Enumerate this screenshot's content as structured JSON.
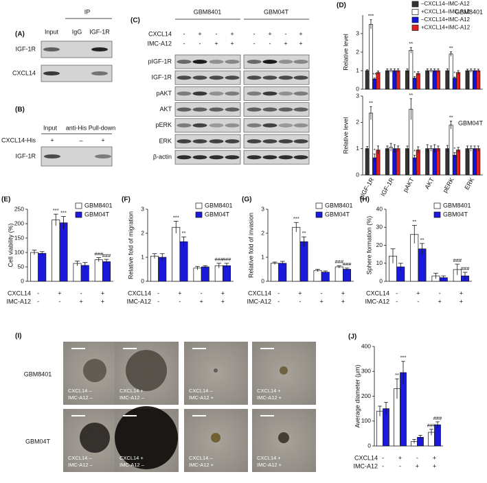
{
  "figure": {
    "A": {
      "label": "(A)",
      "ip": "IP",
      "columns": [
        "Input",
        "IgG",
        "IGF-1R"
      ],
      "rows": [
        "IGF-1R",
        "CXCL14"
      ]
    },
    "B": {
      "label": "(B)",
      "columns": [
        "Input",
        "anti-His Pull-down"
      ],
      "treatment": "CXCL14-His",
      "signs": [
        "+",
        "–",
        "+"
      ],
      "rows": [
        "IGF-1R"
      ]
    },
    "C": {
      "label": "(C)",
      "groups": [
        "GBM8401",
        "GBM04T"
      ],
      "treatments": [
        {
          "name": "CXCL14",
          "signs": [
            "-",
            "+",
            "-",
            "+"
          ]
        },
        {
          "name": "IMC-A12",
          "signs": [
            "-",
            "-",
            "+",
            "+"
          ]
        }
      ],
      "rows": [
        "pIGF-1R",
        "IGF-1R",
        "pAKT",
        "AKT",
        "pERK",
        "ERK",
        "β-actin"
      ]
    },
    "I": {
      "label": "(I)",
      "rows": [
        {
          "label": "GBM8401",
          "captions": [
            [
              "CXCL14 –",
              "IMC-A12 –"
            ],
            [
              "CXCL14 +",
              "IMC-A12 –"
            ],
            [
              "CXCL14 –",
              "IMC-A12 +"
            ],
            [
              "CXCL14 +",
              "IMC-A12 +"
            ]
          ]
        },
        {
          "label": "GBM04T",
          "captions": [
            [
              "CXCL14 –",
              "IMC-A12 –"
            ],
            [
              "CXCL14 +",
              "IMC-A12 –"
            ],
            [
              "CXCL14 –",
              "IMC-A12 +"
            ],
            [
              "CXCL14 +",
              "IMC-A12 +"
            ]
          ]
        }
      ]
    }
  },
  "chart_data": [
    {
      "type": "bar",
      "panel_label": "(D)",
      "title": "GBM8401",
      "y_label": "Relative level",
      "categories": [
        null,
        null,
        null,
        null,
        null,
        null
      ],
      "ylim": [
        0,
        4
      ],
      "yticks": [
        0,
        1,
        2,
        3
      ],
      "legend": "top-right",
      "series": [
        {
          "name": "–CXCL14–IMC-A12",
          "color": "#333333",
          "values": [
            1,
            1,
            1,
            1,
            1,
            1
          ],
          "errors": [
            0.05,
            0.1,
            0.1,
            0.1,
            0.1,
            0.08
          ],
          "labels": [
            null,
            null,
            null,
            null,
            null,
            null
          ]
        },
        {
          "name": "+CXCL14–IMC-A12",
          "color": "#ffffff",
          "values": [
            3.5,
            1.0,
            2.1,
            1.0,
            1.9,
            1.0
          ],
          "errors": [
            0.25,
            0.1,
            0.15,
            0.1,
            0.12,
            0.1
          ],
          "labels": [
            "***",
            null,
            "**",
            null,
            "**",
            null
          ]
        },
        {
          "name": "–CXCL14+IMC-A12",
          "color": "#1414dc",
          "values": [
            0.55,
            1.0,
            0.6,
            1.0,
            0.6,
            1.0
          ],
          "errors": [
            0.05,
            0.1,
            0.08,
            0.1,
            0.06,
            0.1
          ],
          "labels": [
            "**",
            null,
            "*",
            null,
            "*",
            null
          ]
        },
        {
          "name": "+CXCL14+IMC-A12",
          "color": "#e02020",
          "values": [
            0.9,
            1.0,
            0.85,
            1.0,
            0.9,
            1.0
          ],
          "errors": [
            0.08,
            0.1,
            0.1,
            0.1,
            0.1,
            0.08
          ],
          "labels": [
            null,
            null,
            null,
            null,
            null,
            null
          ]
        }
      ]
    },
    {
      "type": "bar",
      "title": "GBM04T",
      "y_label": "Relative level",
      "categories": [
        "pIGF-1R",
        "IGF-1R",
        "pAKT",
        "AKT",
        "pERK",
        "ERK"
      ],
      "ylim": [
        0,
        3
      ],
      "yticks": [
        0,
        1,
        2,
        3
      ],
      "series": [
        {
          "color": "#333333",
          "values": [
            1,
            1,
            1,
            1,
            1,
            1
          ],
          "errors": [
            0.08,
            0.1,
            0.1,
            0.15,
            0.12,
            0.1
          ],
          "labels": [
            null,
            null,
            null,
            null,
            null,
            null
          ]
        },
        {
          "color": "#ffffff",
          "values": [
            2.35,
            1.05,
            2.5,
            1.0,
            1.9,
            1.0
          ],
          "errors": [
            0.25,
            0.15,
            0.4,
            0.1,
            0.15,
            0.1
          ],
          "labels": [
            "**",
            null,
            "**",
            null,
            "**",
            null
          ]
        },
        {
          "color": "#1414dc",
          "values": [
            0.65,
            1.0,
            0.65,
            1.0,
            0.75,
            1.0
          ],
          "errors": [
            0.15,
            0.15,
            0.1,
            0.15,
            0.1,
            0.1
          ],
          "labels": [
            "*",
            null,
            "*",
            null,
            "*",
            null
          ]
        },
        {
          "color": "#e02020",
          "values": [
            0.95,
            1.0,
            0.95,
            1.0,
            0.95,
            1.0
          ],
          "errors": [
            0.15,
            0.1,
            0.12,
            0.1,
            0.1,
            0.1
          ],
          "labels": [
            null,
            null,
            null,
            null,
            null,
            null
          ]
        }
      ]
    },
    {
      "type": "bar",
      "panel_label": "(E)",
      "y_label": "Cell viability (%)",
      "ylim": [
        0,
        250
      ],
      "yticks": [
        0,
        50,
        100,
        150,
        200,
        250
      ],
      "legend": "top-right",
      "conditions": [
        {
          "name": "CXCL14",
          "signs": [
            "-",
            "+",
            "-",
            "+"
          ]
        },
        {
          "name": "IMC-A12",
          "signs": [
            "-",
            "-",
            "+",
            "+"
          ]
        }
      ],
      "series": [
        {
          "name": "GBM8401",
          "color": "#ffffff",
          "values": [
            100,
            213,
            62,
            75
          ],
          "errors": [
            8,
            20,
            8,
            7
          ],
          "labels": [
            null,
            "***",
            null,
            "###"
          ]
        },
        {
          "name": "GBM04T",
          "color": "#1a1adc",
          "values": [
            97,
            203,
            55,
            68
          ],
          "errors": [
            6,
            22,
            10,
            8
          ],
          "labels": [
            null,
            "***",
            null,
            "###"
          ]
        }
      ]
    },
    {
      "type": "bar",
      "panel_label": "(F)",
      "y_label": "Relative fold of migration",
      "ylim": [
        0,
        3
      ],
      "yticks": [
        0,
        1,
        2,
        3
      ],
      "legend": "top-right",
      "conditions": [
        {
          "name": "CXCL14",
          "signs": [
            "-",
            "+",
            "-",
            "+"
          ]
        },
        {
          "name": "IMC-A12",
          "signs": [
            "-",
            "-",
            "+",
            "+"
          ]
        }
      ],
      "series": [
        {
          "name": "GBM8401",
          "color": "#ffffff",
          "values": [
            1.05,
            2.25,
            0.55,
            0.65
          ],
          "errors": [
            0.1,
            0.25,
            0.07,
            0.1
          ],
          "labels": [
            null,
            "***",
            null,
            "###"
          ]
        },
        {
          "name": "GBM04T",
          "color": "#1a1adc",
          "values": [
            1.0,
            1.65,
            0.6,
            0.65
          ],
          "errors": [
            0.15,
            0.2,
            0.05,
            0.1
          ],
          "labels": [
            null,
            "**",
            null,
            "###"
          ]
        }
      ]
    },
    {
      "type": "bar",
      "panel_label": "(G)",
      "y_label": "Relative fold of invasion",
      "ylim": [
        0,
        3
      ],
      "yticks": [
        0,
        1,
        2,
        3
      ],
      "legend": "top-right",
      "conditions": [
        {
          "name": "CXCL14",
          "signs": [
            "-",
            "+",
            "-",
            "+"
          ]
        },
        {
          "name": "IMC-A12",
          "signs": [
            "-",
            "-",
            "+",
            "+"
          ]
        }
      ],
      "series": [
        {
          "name": "GBM8401",
          "color": "#ffffff",
          "values": [
            0.75,
            2.25,
            0.45,
            0.6
          ],
          "errors": [
            0.05,
            0.2,
            0.05,
            0.05
          ],
          "labels": [
            null,
            "***",
            null,
            "###"
          ]
        },
        {
          "name": "GBM04T",
          "color": "#1a1adc",
          "values": [
            0.75,
            1.65,
            0.38,
            0.5
          ],
          "errors": [
            0.08,
            0.2,
            0.05,
            0.05
          ],
          "labels": [
            null,
            "**",
            null,
            "###"
          ]
        }
      ]
    },
    {
      "type": "bar",
      "panel_label": "(H)",
      "y_label": "Sphere formation (%)",
      "ylim": [
        0,
        40
      ],
      "yticks": [
        0,
        10,
        20,
        30,
        40
      ],
      "legend": "top-right",
      "conditions": [
        {
          "name": "CXCL14",
          "signs": [
            "-",
            "+",
            "-",
            "+"
          ]
        },
        {
          "name": "IMC-A12",
          "signs": [
            "-",
            "-",
            "+",
            "+"
          ]
        }
      ],
      "series": [
        {
          "name": "GBM8401",
          "color": "#ffffff",
          "values": [
            14,
            26,
            3,
            6.5
          ],
          "errors": [
            4,
            5,
            1.5,
            3
          ],
          "labels": [
            null,
            "**",
            null,
            "###"
          ]
        },
        {
          "name": "GBM04T",
          "color": "#1a1adc",
          "values": [
            8,
            18,
            2,
            3
          ],
          "errors": [
            2,
            3,
            1,
            2
          ],
          "labels": [
            null,
            "**",
            null,
            "###"
          ]
        }
      ]
    },
    {
      "type": "bar",
      "panel_label": "(J)",
      "y_label": "Average diameter (μm)",
      "ylim": [
        0,
        400
      ],
      "yticks": [
        0,
        100,
        200,
        300,
        400
      ],
      "conditions": [
        {
          "name": "CXCL14",
          "signs": [
            "-",
            "+",
            "-",
            "+"
          ]
        },
        {
          "name": "IMC-A12",
          "signs": [
            "-",
            "-",
            "+",
            "+"
          ]
        }
      ],
      "series": [
        {
          "color": "#ffffff",
          "values": [
            140,
            230,
            18,
            55
          ],
          "errors": [
            20,
            40,
            8,
            12
          ],
          "labels": [
            null,
            "**",
            null,
            "###"
          ]
        },
        {
          "color": "#1a1adc",
          "values": [
            150,
            295,
            35,
            85
          ],
          "errors": [
            25,
            45,
            8,
            12
          ],
          "labels": [
            null,
            "***",
            null,
            "###"
          ]
        }
      ]
    }
  ]
}
